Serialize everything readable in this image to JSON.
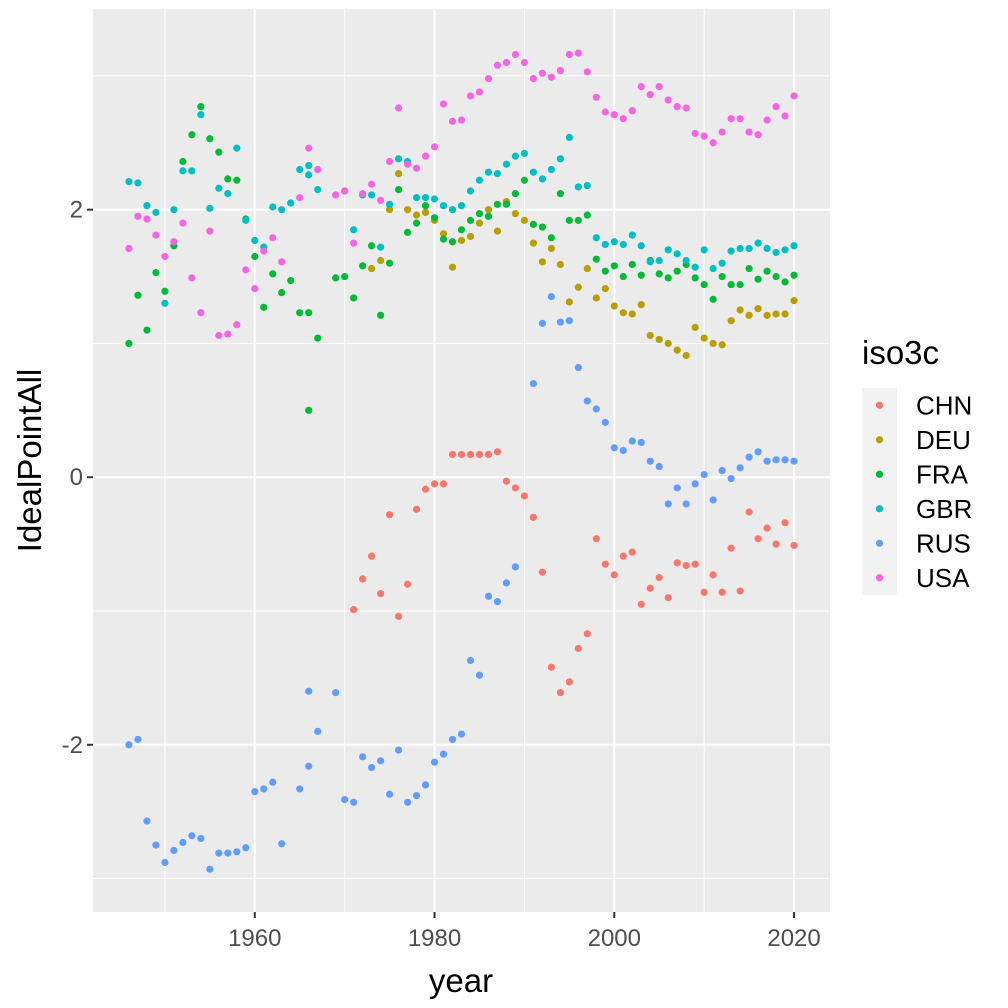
{
  "chart_data": {
    "type": "scatter",
    "title": "",
    "xlabel": "year",
    "ylabel": "IdealPointAll",
    "xlim": [
      1942,
      2024
    ],
    "ylim": [
      -3.25,
      3.5
    ],
    "x_ticks": [
      1960,
      1980,
      2000,
      2020
    ],
    "y_ticks": [
      -2,
      0,
      2
    ],
    "x_tick_labels": [
      "1960",
      "1980",
      "2000",
      "2020"
    ],
    "y_tick_labels": [
      "-2",
      "0",
      "2"
    ],
    "grid": true,
    "legend": {
      "title": "iso3c",
      "position": "right"
    },
    "series": [
      {
        "name": "CHN",
        "color": "#F8766D",
        "x": [
          1971,
          1972,
          1973,
          1974,
          1975,
          1976,
          1977,
          1978,
          1979,
          1980,
          1981,
          1982,
          1983,
          1984,
          1985,
          1986,
          1987,
          1988,
          1989,
          1990,
          1991,
          1992,
          1993,
          1994,
          1995,
          1996,
          1997,
          1998,
          1999,
          2000,
          2001,
          2002,
          2003,
          2004,
          2005,
          2006,
          2007,
          2008,
          2009,
          2010,
          2011,
          2012,
          2013,
          2014,
          2015,
          2016,
          2017,
          2018,
          2019,
          2020
        ],
        "y": [
          -0.99,
          -0.76,
          -0.59,
          -0.87,
          -0.28,
          -1.04,
          -0.8,
          -0.24,
          -0.09,
          -0.05,
          -0.05,
          0.17,
          0.17,
          0.17,
          0.17,
          0.17,
          0.19,
          -0.03,
          -0.08,
          -0.14,
          -0.3,
          -0.71,
          -1.42,
          -1.61,
          -1.53,
          -1.28,
          -1.17,
          -0.46,
          -0.65,
          -0.73,
          -0.59,
          -0.56,
          -0.95,
          -0.83,
          -0.75,
          -0.9,
          -0.64,
          -0.66,
          -0.65,
          -0.86,
          -0.73,
          -0.86,
          -0.53,
          -0.85,
          -0.26,
          -0.46,
          -0.38,
          -0.5,
          -0.34,
          -0.51
        ]
      },
      {
        "name": "DEU",
        "color": "#B79F00",
        "x": [
          1973,
          1974,
          1975,
          1976,
          1977,
          1978,
          1979,
          1980,
          1981,
          1982,
          1983,
          1984,
          1985,
          1986,
          1987,
          1988,
          1989,
          1990,
          1991,
          1992,
          1993,
          1994,
          1995,
          1996,
          1997,
          1998,
          1999,
          2000,
          2001,
          2002,
          2003,
          2004,
          2005,
          2006,
          2007,
          2008,
          2009,
          2010,
          2011,
          2012,
          2013,
          2014,
          2015,
          2016,
          2017,
          2018,
          2019,
          2020
        ],
        "y": [
          1.56,
          1.62,
          2.0,
          2.27,
          2.0,
          1.96,
          1.98,
          1.92,
          1.82,
          1.57,
          1.77,
          1.8,
          1.9,
          2.0,
          1.84,
          2.06,
          1.97,
          1.92,
          1.75,
          1.61,
          1.71,
          1.59,
          1.31,
          1.42,
          1.56,
          1.34,
          1.41,
          1.28,
          1.23,
          1.22,
          1.29,
          1.06,
          1.03,
          1.0,
          0.95,
          0.91,
          1.12,
          1.04,
          1.0,
          0.99,
          1.17,
          1.25,
          1.21,
          1.26,
          1.21,
          1.22,
          1.22,
          1.32
        ]
      },
      {
        "name": "FRA",
        "color": "#00BA38",
        "x": [
          1946,
          1947,
          1948,
          1949,
          1950,
          1951,
          1952,
          1953,
          1954,
          1955,
          1956,
          1957,
          1958,
          1959,
          1960,
          1961,
          1962,
          1963,
          1964,
          1965,
          1966,
          1966,
          1967,
          1969,
          1970,
          1971,
          1972,
          1973,
          1974,
          1975,
          1976,
          1977,
          1978,
          1979,
          1980,
          1981,
          1982,
          1983,
          1984,
          1985,
          1986,
          1987,
          1988,
          1989,
          1990,
          1991,
          1992,
          1993,
          1994,
          1995,
          1996,
          1997,
          1998,
          1999,
          2000,
          2001,
          2002,
          2003,
          2004,
          2005,
          2006,
          2007,
          2008,
          2009,
          2010,
          2011,
          2012,
          2013,
          2014,
          2015,
          2016,
          2017,
          2018,
          2019,
          2020
        ],
        "y": [
          1.0,
          1.36,
          1.1,
          1.53,
          1.39,
          1.73,
          2.36,
          2.56,
          2.77,
          2.53,
          2.43,
          2.23,
          2.22,
          1.93,
          1.65,
          1.27,
          1.52,
          1.38,
          1.47,
          1.23,
          0.5,
          1.23,
          1.04,
          1.49,
          1.5,
          1.34,
          1.58,
          1.73,
          1.21,
          1.6,
          2.15,
          1.83,
          1.9,
          2.03,
          1.94,
          1.78,
          1.76,
          1.85,
          1.92,
          1.97,
          1.95,
          2.04,
          2.04,
          2.12,
          2.22,
          1.89,
          1.87,
          1.79,
          2.12,
          1.92,
          1.92,
          1.96,
          1.63,
          1.54,
          1.58,
          1.5,
          1.59,
          1.51,
          1.62,
          1.52,
          1.49,
          1.54,
          1.59,
          1.49,
          1.44,
          1.33,
          1.5,
          1.44,
          1.44,
          1.56,
          1.48,
          1.54,
          1.5,
          1.46,
          1.51
        ]
      },
      {
        "name": "GBR",
        "color": "#00BFC4",
        "x": [
          1946,
          1947,
          1948,
          1949,
          1950,
          1951,
          1952,
          1953,
          1954,
          1955,
          1956,
          1957,
          1958,
          1959,
          1960,
          1961,
          1962,
          1963,
          1964,
          1965,
          1966,
          1966,
          1967,
          1970,
          1971,
          1972,
          1973,
          1974,
          1975,
          1976,
          1977,
          1978,
          1979,
          1980,
          1981,
          1982,
          1983,
          1984,
          1985,
          1986,
          1987,
          1988,
          1989,
          1990,
          1991,
          1992,
          1993,
          1994,
          1995,
          1996,
          1997,
          1998,
          1999,
          2000,
          2001,
          2002,
          2003,
          2004,
          2005,
          2006,
          2007,
          2008,
          2009,
          2010,
          2011,
          2012,
          2013,
          2014,
          2015,
          2016,
          2017,
          2018,
          2019,
          2020
        ],
        "y": [
          2.21,
          2.2,
          2.03,
          1.98,
          1.3,
          2.0,
          2.29,
          2.29,
          2.71,
          2.01,
          2.16,
          2.12,
          2.46,
          1.92,
          1.77,
          1.72,
          2.02,
          2.0,
          2.05,
          2.3,
          2.33,
          2.26,
          2.15,
          2.14,
          1.85,
          2.11,
          2.11,
          1.72,
          2.04,
          2.38,
          2.36,
          2.09,
          2.09,
          2.08,
          2.03,
          2.0,
          2.03,
          2.14,
          2.22,
          2.28,
          2.27,
          2.34,
          2.4,
          2.42,
          2.28,
          2.23,
          2.3,
          2.38,
          2.54,
          2.17,
          2.18,
          1.79,
          1.74,
          1.76,
          1.74,
          1.81,
          1.73,
          1.61,
          1.62,
          1.7,
          1.67,
          1.62,
          1.57,
          1.7,
          1.56,
          1.6,
          1.69,
          1.71,
          1.71,
          1.75,
          1.71,
          1.68,
          1.7,
          1.73
        ]
      },
      {
        "name": "RUS",
        "color": "#619CFF",
        "x": [
          1946,
          1947,
          1948,
          1949,
          1950,
          1951,
          1952,
          1953,
          1954,
          1955,
          1956,
          1957,
          1958,
          1959,
          1960,
          1961,
          1962,
          1963,
          1965,
          1966,
          1966,
          1967,
          1969,
          1970,
          1971,
          1972,
          1973,
          1974,
          1975,
          1976,
          1977,
          1978,
          1979,
          1980,
          1981,
          1982,
          1983,
          1984,
          1985,
          1986,
          1987,
          1988,
          1989,
          1991,
          1992,
          1993,
          1994,
          1995,
          1996,
          1997,
          1998,
          1999,
          2000,
          2001,
          2002,
          2003,
          2004,
          2005,
          2006,
          2007,
          2008,
          2009,
          2010,
          2011,
          2012,
          2013,
          2014,
          2015,
          2016,
          2017,
          2018,
          2019,
          2020
        ],
        "y": [
          -2.0,
          -1.96,
          -2.57,
          -2.75,
          -2.88,
          -2.79,
          -2.73,
          -2.68,
          -2.7,
          -2.93,
          -2.81,
          -2.81,
          -2.8,
          -2.77,
          -2.35,
          -2.33,
          -2.28,
          -2.74,
          -2.33,
          -1.6,
          -2.16,
          -1.9,
          -1.61,
          -2.41,
          -2.43,
          -2.09,
          -2.17,
          -2.12,
          -2.37,
          -2.04,
          -2.43,
          -2.38,
          -2.3,
          -2.13,
          -2.07,
          -1.96,
          -1.92,
          -1.37,
          -1.48,
          -0.89,
          -0.93,
          -0.79,
          -0.67,
          0.7,
          1.15,
          1.35,
          1.16,
          1.17,
          0.82,
          0.57,
          0.51,
          0.41,
          0.22,
          0.2,
          0.27,
          0.26,
          0.12,
          0.08,
          -0.2,
          -0.08,
          -0.2,
          -0.05,
          0.02,
          -0.17,
          0.05,
          -0.01,
          0.07,
          0.15,
          0.19,
          0.12,
          0.13,
          0.13,
          0.12
        ]
      },
      {
        "name": "USA",
        "color": "#F564E3",
        "x": [
          1946,
          1947,
          1948,
          1949,
          1950,
          1951,
          1952,
          1953,
          1954,
          1955,
          1956,
          1957,
          1958,
          1959,
          1960,
          1961,
          1962,
          1963,
          1965,
          1966,
          1967,
          1969,
          1970,
          1971,
          1972,
          1973,
          1974,
          1975,
          1976,
          1977,
          1978,
          1979,
          1980,
          1981,
          1982,
          1983,
          1984,
          1985,
          1986,
          1987,
          1988,
          1989,
          1990,
          1991,
          1992,
          1993,
          1994,
          1995,
          1996,
          1997,
          1998,
          1999,
          2000,
          2001,
          2002,
          2003,
          2004,
          2005,
          2006,
          2007,
          2008,
          2009,
          2010,
          2011,
          2012,
          2013,
          2014,
          2015,
          2016,
          2017,
          2018,
          2019,
          2020
        ],
        "y": [
          1.71,
          1.95,
          1.93,
          1.81,
          1.65,
          1.76,
          1.9,
          1.49,
          1.23,
          1.84,
          1.06,
          1.07,
          1.14,
          1.55,
          1.41,
          1.69,
          1.79,
          1.61,
          2.09,
          2.46,
          2.3,
          2.11,
          2.14,
          1.75,
          2.12,
          2.19,
          2.07,
          2.36,
          2.76,
          2.34,
          2.31,
          2.4,
          2.47,
          2.79,
          2.66,
          2.67,
          2.85,
          2.88,
          2.98,
          3.08,
          3.1,
          3.16,
          3.1,
          2.98,
          3.02,
          2.99,
          3.04,
          3.16,
          3.17,
          3.03,
          2.84,
          2.73,
          2.71,
          2.68,
          2.74,
          2.92,
          2.86,
          2.92,
          2.82,
          2.77,
          2.76,
          2.57,
          2.55,
          2.5,
          2.58,
          2.68,
          2.68,
          2.58,
          2.56,
          2.67,
          2.77,
          2.7,
          2.85
        ]
      }
    ]
  }
}
